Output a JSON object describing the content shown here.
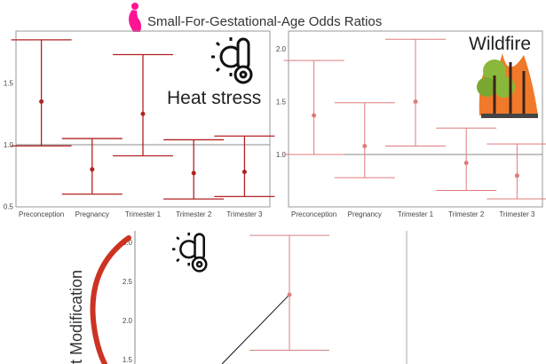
{
  "title": "Small-For-Gestational-Age Odds Ratios",
  "bottom_ylabel_partial": "t Modification",
  "colors": {
    "heat": "#b22222",
    "wildfire": "#e07b7b",
    "bottom": "#d98080",
    "title_icon": "#ff1493",
    "arc": "#cc3322"
  },
  "icons": [
    "pregnant-woman-icon",
    "sun-thermometer-icon",
    "wildfire-trees-icon"
  ],
  "chart_data": [
    {
      "type": "errorbar",
      "label": "Heat stress",
      "categories": [
        "Preconception",
        "Pregnancy",
        "Trimester 1",
        "Trimester 2",
        "Trimester 3"
      ],
      "estimate": [
        1.35,
        0.8,
        1.25,
        0.77,
        0.78
      ],
      "lower": [
        0.99,
        0.6,
        0.91,
        0.56,
        0.58
      ],
      "upper": [
        1.85,
        1.05,
        1.73,
        1.04,
        1.07
      ],
      "ylim": [
        0.5,
        1.92
      ],
      "yticks": [
        "0.5",
        "1.0",
        "1.5"
      ],
      "reference_line": 1.0
    },
    {
      "type": "errorbar",
      "label": "Wildfire",
      "categories": [
        "Preconception",
        "Pregnancy",
        "Trimester 1",
        "Trimester 2",
        "Trimester 3"
      ],
      "estimate": [
        1.37,
        1.08,
        1.5,
        0.92,
        0.8
      ],
      "lower": [
        1.0,
        0.78,
        1.08,
        0.66,
        0.58
      ],
      "upper": [
        1.89,
        1.49,
        2.09,
        1.25,
        1.1
      ],
      "ylim": [
        0.52,
        2.17
      ],
      "yticks": [
        "1.0",
        "1.5",
        "2.0"
      ],
      "reference_line": 1.0
    },
    {
      "type": "errorbar",
      "categories": [
        ""
      ],
      "estimate": [
        2.33
      ],
      "lower": [
        1.62
      ],
      "upper": [
        3.09
      ],
      "yticks": [
        "1.5",
        "2.0",
        "2.5",
        "3.0"
      ],
      "ylim": [
        1.45,
        3.15
      ]
    }
  ]
}
